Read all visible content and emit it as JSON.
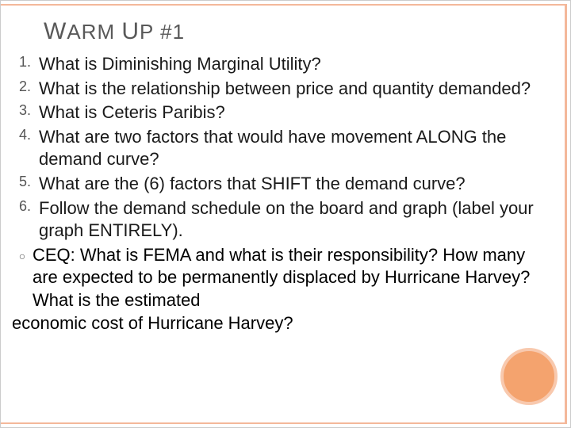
{
  "colors": {
    "border": "#f4b89a",
    "circle_fill": "#f4a36e",
    "circle_ring": "#f8c9ae",
    "title_color": "#595959",
    "text_color": "#1a1a1a",
    "background": "#ffffff"
  },
  "title": {
    "w1_cap": "W",
    "w1_rest": "ARM",
    "w2_cap": "U",
    "w2_rest": "P",
    "suffix": "#1",
    "fontsize_caps": 30,
    "fontsize_small": 26
  },
  "items": [
    {
      "n": "1.",
      "text": "What is Diminishing Marginal Utility?"
    },
    {
      "n": "2.",
      "text": "What is the relationship between price and quantity demanded?"
    },
    {
      "n": "3.",
      "text": "What is Ceteris Paribis?"
    },
    {
      "n": "4.",
      "text": "What are two factors that would have movement ALONG the demand curve?"
    },
    {
      "n": "5.",
      "text": "What are the (6) factors that SHIFT the demand curve?"
    },
    {
      "n": "6.",
      "text": "Follow the demand schedule on the board and graph (label your graph ENTIRELY)."
    }
  ],
  "ceq": {
    "bullet": "○",
    "text": "CEQ:   What is FEMA and what is their responsibility?  How many are expected to be permanently displaced by Hurricane Harvey?  What is the estimated"
  },
  "last_line": "economic cost of Hurricane Harvey?",
  "list_fontsize": 22
}
